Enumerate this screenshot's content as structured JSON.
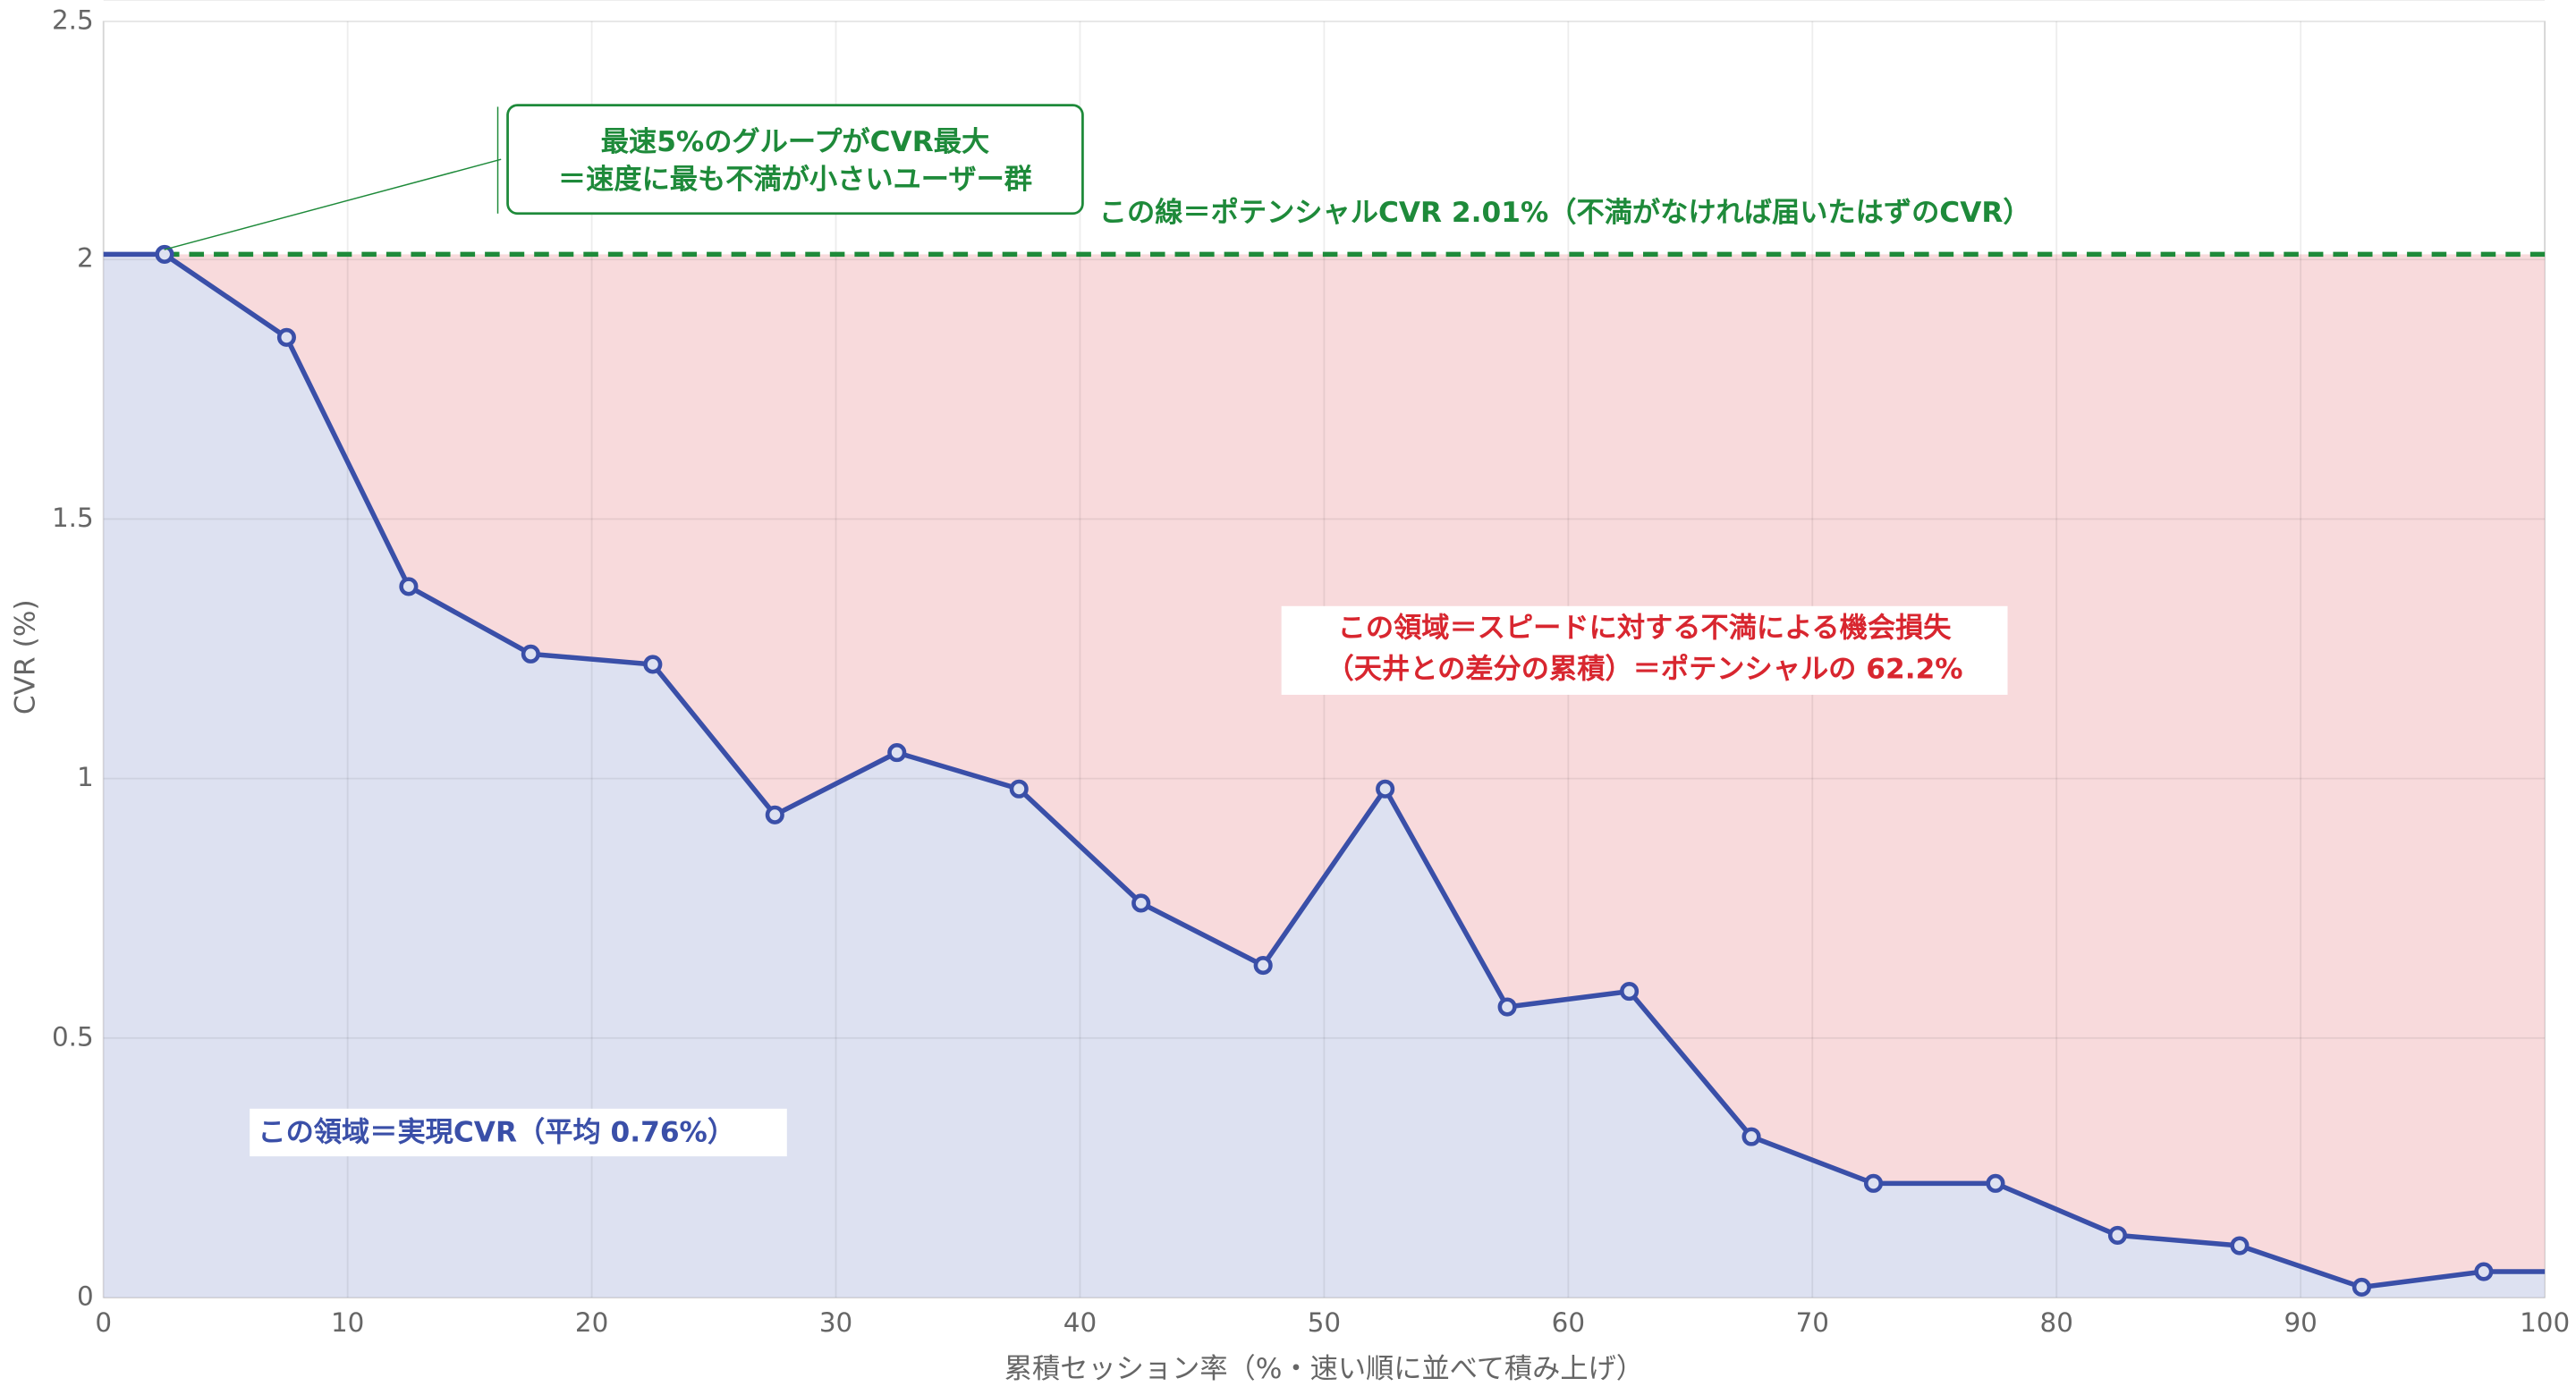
{
  "chart_data": {
    "type": "line",
    "x_label": "累積セッション率（%・速い順に並べて積み上げ）",
    "y_label": "CVR (%)",
    "x": [
      2.5,
      7.5,
      12.5,
      17.5,
      22.5,
      27.5,
      32.5,
      37.5,
      42.5,
      47.5,
      52.5,
      57.5,
      62.5,
      67.5,
      72.5,
      77.5,
      82.5,
      87.5,
      92.5,
      97.5
    ],
    "series": [
      {
        "name": "CVR",
        "color": "#3a4fa8",
        "values": [
          2.01,
          1.85,
          1.37,
          1.24,
          1.22,
          0.93,
          1.05,
          0.98,
          0.76,
          0.64,
          0.98,
          0.56,
          0.59,
          0.31,
          0.22,
          0.22,
          0.12,
          0.1,
          0.02,
          0.05
        ]
      }
    ],
    "xlim": [
      0,
      100
    ],
    "xticks": [
      0,
      10,
      20,
      30,
      40,
      50,
      60,
      70,
      80,
      90,
      100
    ],
    "ylim": [
      0,
      2.5
    ],
    "yticks": [
      0,
      0.5,
      1.0,
      1.5,
      2.0,
      2.5
    ],
    "grid": true,
    "reference_line": {
      "value": 2.01,
      "color": "#1e8a3a",
      "label": "この線＝ポテンシャルCVR 2.01%（不満がなければ届いたはずのCVR）"
    },
    "annotations": {
      "top": [
        "最速5%のグループがCVR最大",
        "＝速度に最も不満が小さいユーザー群"
      ],
      "loss": [
        "この領域＝スピードに対する不満による機会損失",
        "（天井との差分の累積）＝ポテンシャルの 62.2%"
      ],
      "realized": "この領域＝実現CVR（平均 0.76%）"
    }
  }
}
